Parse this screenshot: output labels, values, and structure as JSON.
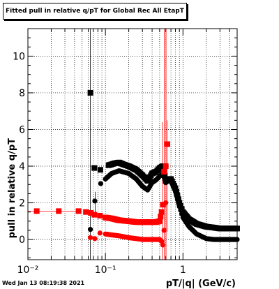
{
  "chart_data": {
    "type": "scatter",
    "title": "Fitted pull in relative q/pT  for Global Rec All EtapT",
    "xlabel": "pT/|q| (GeV/c)",
    "ylabel": "pull in relative q/pT",
    "xscale": "log",
    "xlim": [
      0.01,
      5.0
    ],
    "ylim": [
      -1.1,
      11.5
    ],
    "grid": true,
    "x_tick_labels": [
      "10⁻²",
      "10⁻¹",
      "1"
    ],
    "y_tick_labels": [
      "0",
      "2",
      "4",
      "6",
      "8",
      "10"
    ],
    "colors": {
      "black_series": "#000000",
      "red_series": "#ff0000"
    },
    "series": [
      {
        "color": "#000000",
        "marker": "square",
        "x": [
          0.064,
          0.072,
          0.086,
          0.11,
          0.12,
          0.13,
          0.15,
          0.17,
          0.2,
          0.25,
          0.3,
          0.35,
          0.4,
          0.45,
          0.5,
          0.55,
          0.6,
          0.65,
          0.7,
          0.8,
          0.9,
          1.0,
          1.2,
          1.5,
          2.0,
          2.5,
          3.0,
          4.0,
          5.0
        ],
        "y": [
          8.0,
          3.9,
          3.8,
          4.05,
          4.1,
          4.15,
          4.2,
          4.1,
          4.0,
          3.8,
          3.5,
          3.2,
          3.6,
          3.7,
          3.9,
          4.0,
          3.2,
          3.3,
          3.3,
          2.8,
          2.0,
          1.5,
          1.1,
          0.85,
          0.7,
          0.65,
          0.6,
          0.6,
          0.6
        ]
      },
      {
        "color": "#000000",
        "marker": "circle",
        "x": [
          0.064,
          0.073,
          0.087,
          0.1,
          0.12,
          0.15,
          0.2,
          0.25,
          0.3,
          0.35,
          0.4,
          0.45,
          0.5,
          0.55,
          0.6,
          0.65,
          0.7,
          0.8,
          0.9,
          1.0,
          1.2,
          1.5,
          2.0,
          2.5,
          3.0,
          4.0,
          5.0
        ],
        "y": [
          0.55,
          2.1,
          3.05,
          3.3,
          3.6,
          3.75,
          3.6,
          3.3,
          2.9,
          2.7,
          3.1,
          3.25,
          3.45,
          3.6,
          3.1,
          3.2,
          3.2,
          2.6,
          1.8,
          1.2,
          0.7,
          0.3,
          0.05,
          0.0,
          0.0,
          0.0,
          0.0
        ]
      },
      {
        "color": "#ff0000",
        "marker": "square",
        "x": [
          0.013,
          0.025,
          0.045,
          0.056,
          0.065,
          0.072,
          0.085,
          0.1,
          0.12,
          0.15,
          0.2,
          0.25,
          0.3,
          0.35,
          0.4,
          0.45,
          0.5,
          0.53,
          0.55,
          0.57,
          0.6,
          0.63
        ],
        "y": [
          1.55,
          1.55,
          1.55,
          1.5,
          1.45,
          1.35,
          1.3,
          1.2,
          1.15,
          1.05,
          1.0,
          0.95,
          0.95,
          0.95,
          0.95,
          0.95,
          1.0,
          1.5,
          1.9,
          3.7,
          4.0,
          5.2
        ]
      },
      {
        "color": "#ff0000",
        "marker": "circle",
        "x": [
          0.064,
          0.073,
          0.085,
          0.1,
          0.12,
          0.15,
          0.2,
          0.25,
          0.3,
          0.35,
          0.4,
          0.45,
          0.5,
          0.53,
          0.55,
          0.57,
          0.6
        ],
        "y": [
          0.1,
          0.05,
          0.35,
          0.3,
          0.25,
          0.2,
          0.1,
          0.05,
          0.0,
          0.0,
          0.0,
          0.0,
          0.0,
          -0.1,
          -0.3,
          0.5,
          2.0
        ]
      }
    ]
  },
  "footer": {
    "datestamp": "Wed Jan 13 08:19:38 2021"
  }
}
